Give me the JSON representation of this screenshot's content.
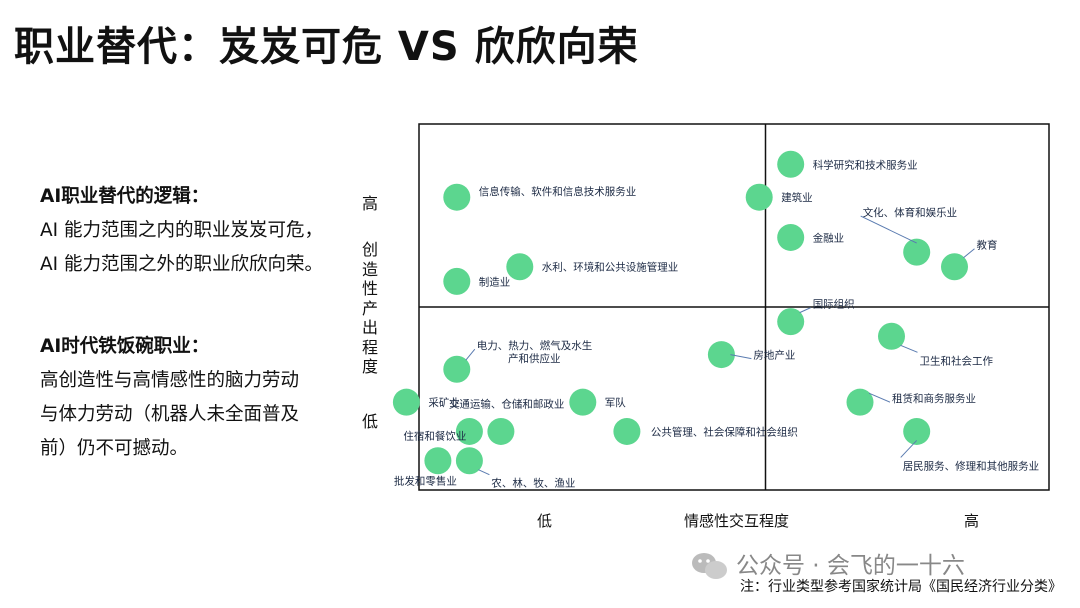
{
  "title": "职业替代：岌岌可危 VS 欣欣向荣",
  "sidebar": {
    "heading1": "AI职业替代的逻辑：",
    "line1": "AI 能力范围之内的职业岌岌可危，",
    "line2": "AI 能力范围之外的职业欣欣向荣。",
    "heading2": "AI时代铁饭碗职业：",
    "line3": "高创造性与高情感性的脑力劳动",
    "line4": "与体力劳动（机器人未全面普及",
    "line5": "前）仍不可撼动。"
  },
  "chart_data": {
    "type": "scatter",
    "xlabel": "情感性交互程度",
    "ylabel": "创造性产出程度",
    "x_tick_low": "低",
    "x_tick_high": "高",
    "y_tick_high": "高",
    "y_tick_low": "低",
    "xlim": [
      0,
      10
    ],
    "ylim": [
      0,
      10
    ],
    "divider_x": 5.5,
    "divider_y": 5,
    "marker_color": "#5cd68f",
    "points": [
      {
        "label": "科学研究和技术服务业",
        "x": 5.9,
        "y": 8.9
      },
      {
        "label": "信息传输、软件和信息技术服务业",
        "x": 0.6,
        "y": 8.0
      },
      {
        "label": "建筑业",
        "x": 5.4,
        "y": 8.0
      },
      {
        "label": "金融业",
        "x": 5.9,
        "y": 6.9
      },
      {
        "label": "文化、体育和娱乐业",
        "x": 7.9,
        "y": 6.5
      },
      {
        "label": "教育",
        "x": 8.5,
        "y": 6.1
      },
      {
        "label": "水利、环境和公共设施管理业",
        "x": 1.6,
        "y": 6.1
      },
      {
        "label": "制造业",
        "x": 0.6,
        "y": 5.7
      },
      {
        "label": "国际组织",
        "x": 5.9,
        "y": 4.6
      },
      {
        "label": "卫生和社会工作",
        "x": 7.5,
        "y": 4.2
      },
      {
        "label": "电力、热力、燃气及水生产和供应业",
        "x": 0.6,
        "y": 3.3
      },
      {
        "label": "房地产业",
        "x": 4.8,
        "y": 3.7
      },
      {
        "label": "采矿业",
        "x": -0.2,
        "y": 2.4
      },
      {
        "label": "军队",
        "x": 2.6,
        "y": 2.4
      },
      {
        "label": "租赁和商务服务业",
        "x": 7.0,
        "y": 2.4
      },
      {
        "label": "交通运输、仓储和邮政业",
        "x": 1.3,
        "y": 1.6
      },
      {
        "label": "住宿和餐饮业",
        "x": 0.8,
        "y": 1.6
      },
      {
        "label": "公共管理、社会保障和社会组织",
        "x": 3.3,
        "y": 1.6
      },
      {
        "label": "居民服务、修理和其他服务业",
        "x": 7.9,
        "y": 1.6
      },
      {
        "label": "批发和零售业",
        "x": 0.3,
        "y": 0.8
      },
      {
        "label": "农、林、牧、渔业",
        "x": 0.8,
        "y": 0.8
      }
    ]
  },
  "watermark": "公众号 · 会飞的一十六",
  "footnote": "注：行业类型参考国家统计局《国民经济行业分类》"
}
